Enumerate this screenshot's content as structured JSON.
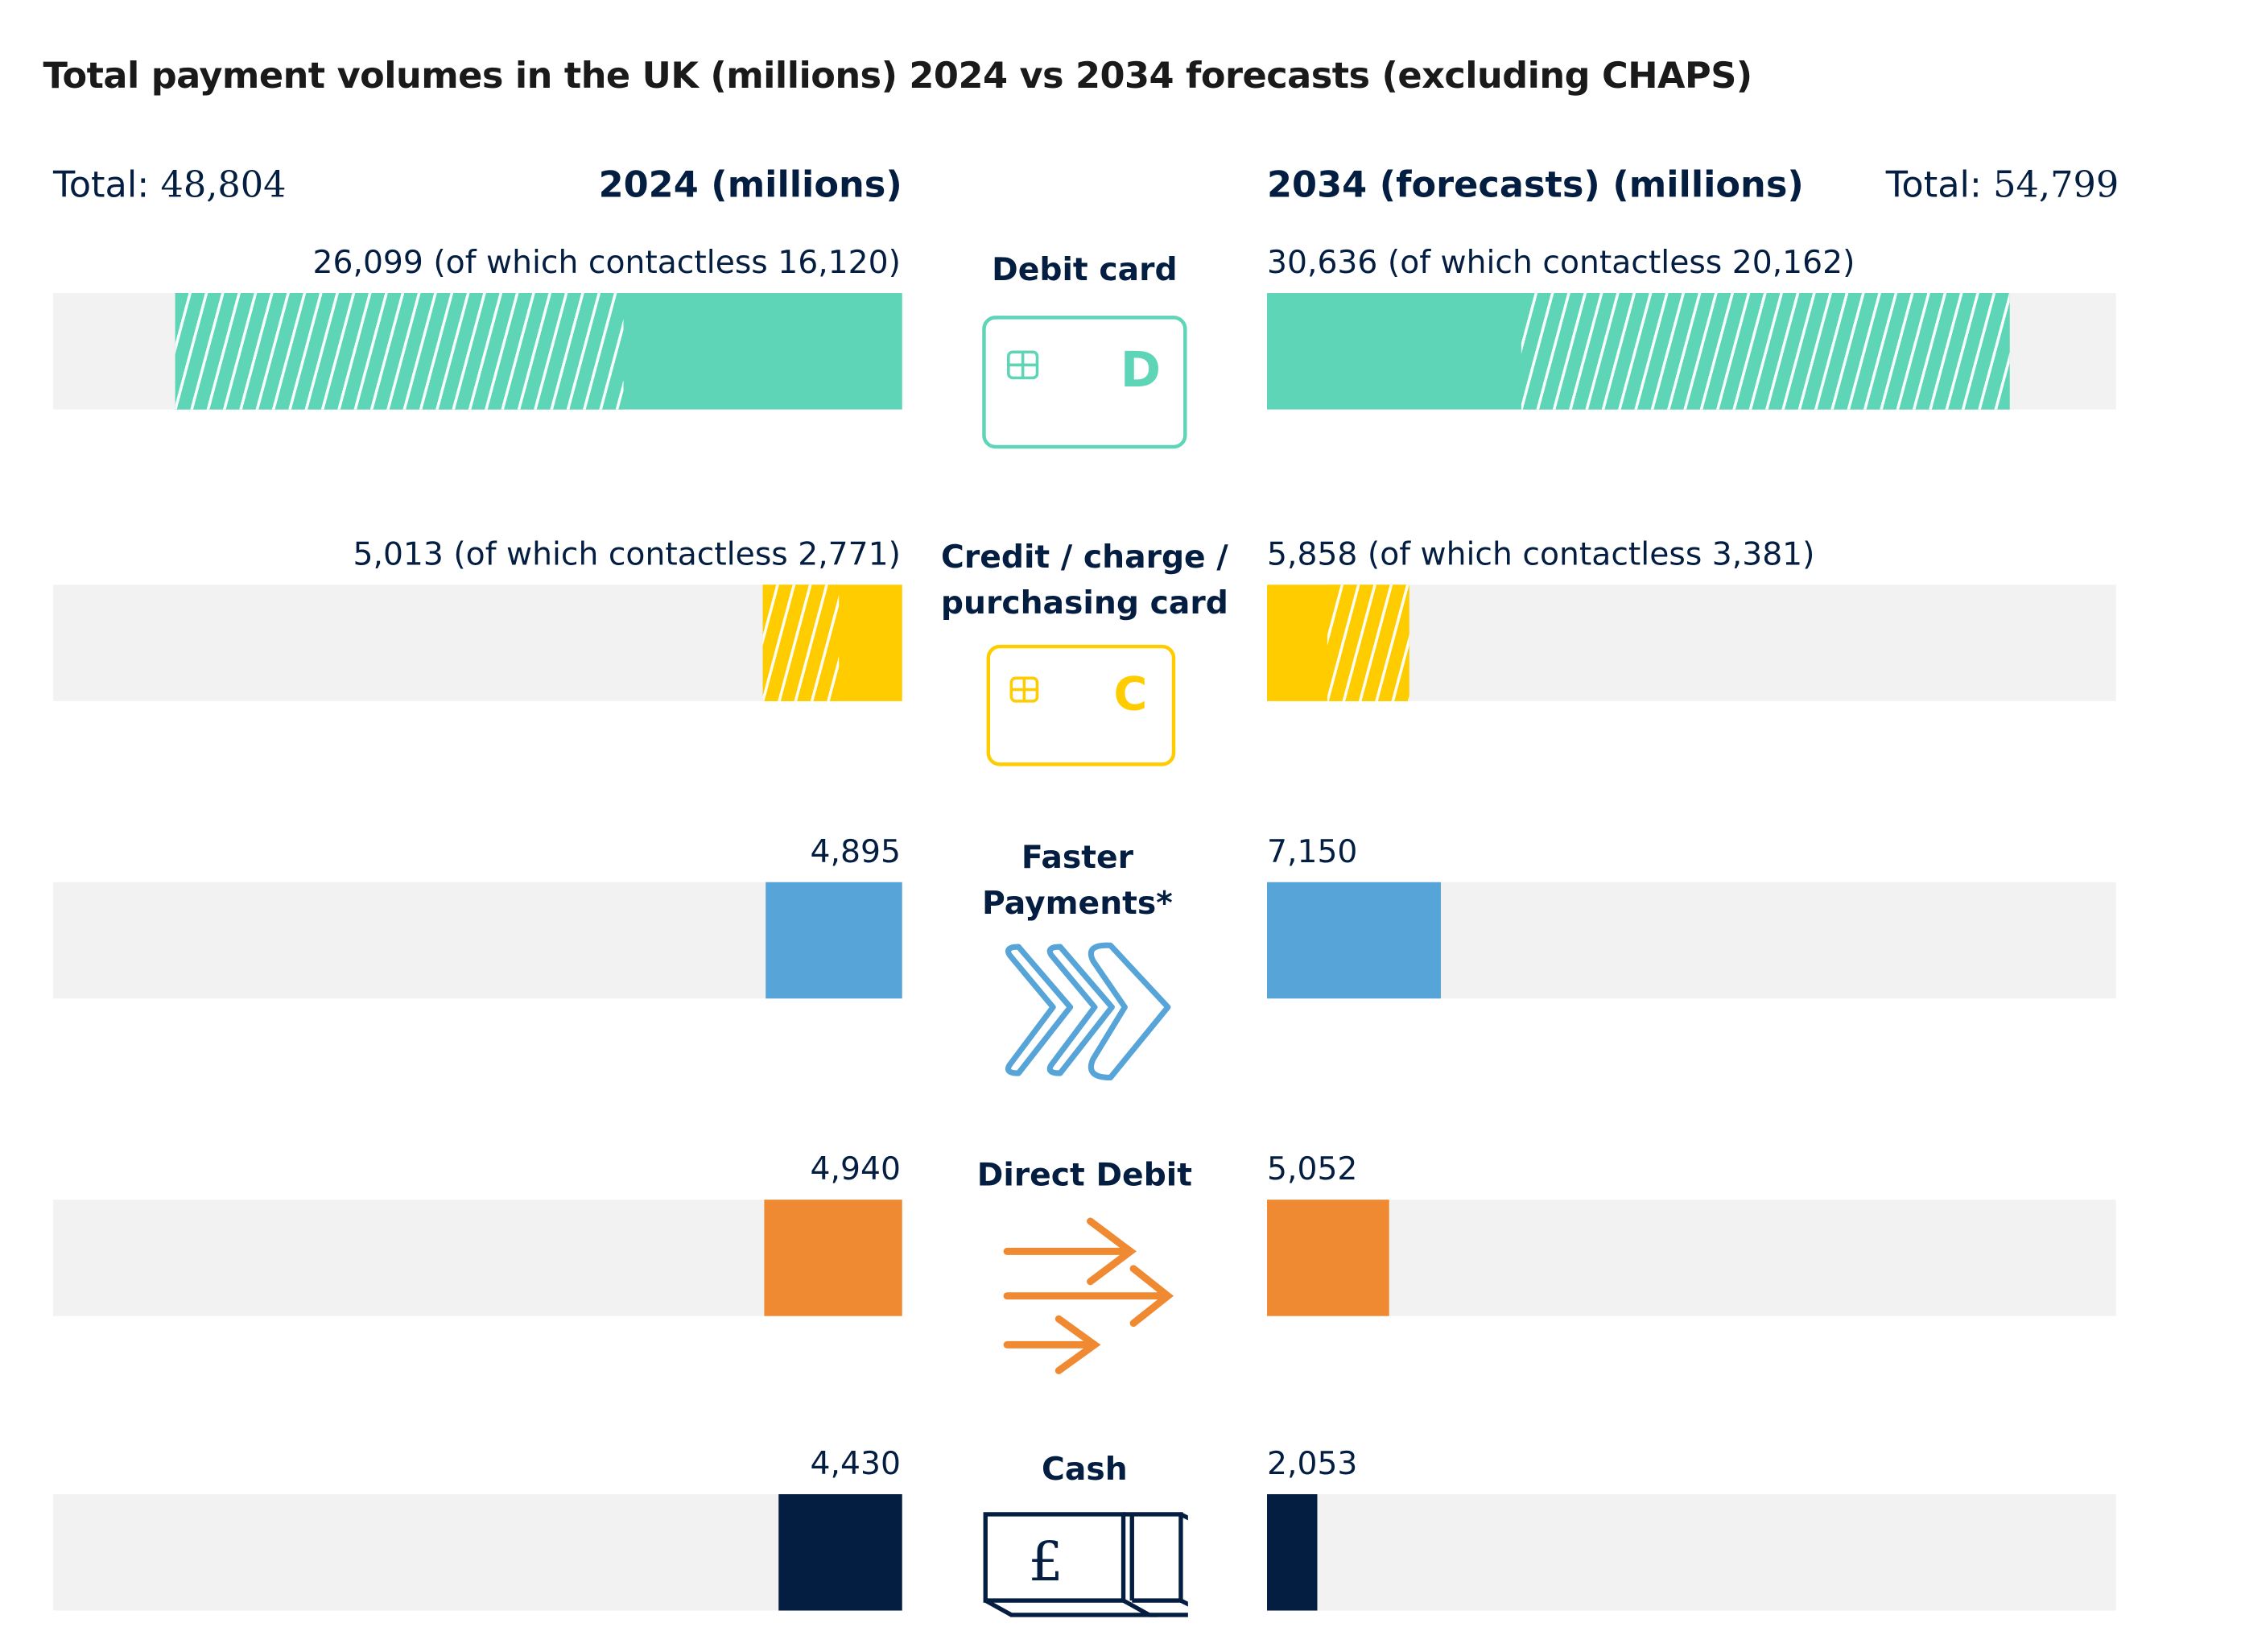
{
  "chart_data": {
    "type": "bar",
    "title": "Total payment volumes in the UK (millions) 2024 vs 2034 forecasts (excluding CHAPS)",
    "left_header": "2024 (millions)",
    "right_header": "2034 (forecasts) (millions)",
    "left_total_label": "Total:",
    "left_total": "48,804",
    "right_total_label": "Total:",
    "right_total": "54,799",
    "left_scale_max": 30000,
    "right_scale_max": 35000,
    "categories": [
      "Debit card",
      "Credit / charge / purchasing card",
      "Faster Payments*",
      "Direct Debit",
      "Cash"
    ],
    "colors": [
      "#5dd5b6",
      "#ffcc00",
      "#57a5d8",
      "#f08a32",
      "#041e42"
    ],
    "series": [
      {
        "name": "2024",
        "values": [
          26099,
          5013,
          4895,
          4940,
          4430
        ],
        "contactless": [
          16120,
          2771,
          null,
          null,
          null
        ],
        "labels": [
          "26,099 (of which contactless 16,120)",
          "5,013 (of which contactless 2,771)",
          "4,895",
          "4,940",
          "4,430"
        ]
      },
      {
        "name": "2034 forecasts",
        "values": [
          30636,
          5858,
          7150,
          5052,
          2053
        ],
        "contactless": [
          20162,
          3381,
          null,
          null,
          null
        ],
        "labels": [
          "30,636 (of which contactless 20,162)",
          "5,858 (of which contactless 3,381)",
          "7,150",
          "5,052",
          "2,053"
        ]
      }
    ],
    "icons": [
      "debit-card-icon",
      "credit-card-icon",
      "chevrons-icon",
      "arrows-icon",
      "cash-icon"
    ],
    "card_letters": [
      "D",
      "C"
    ]
  }
}
